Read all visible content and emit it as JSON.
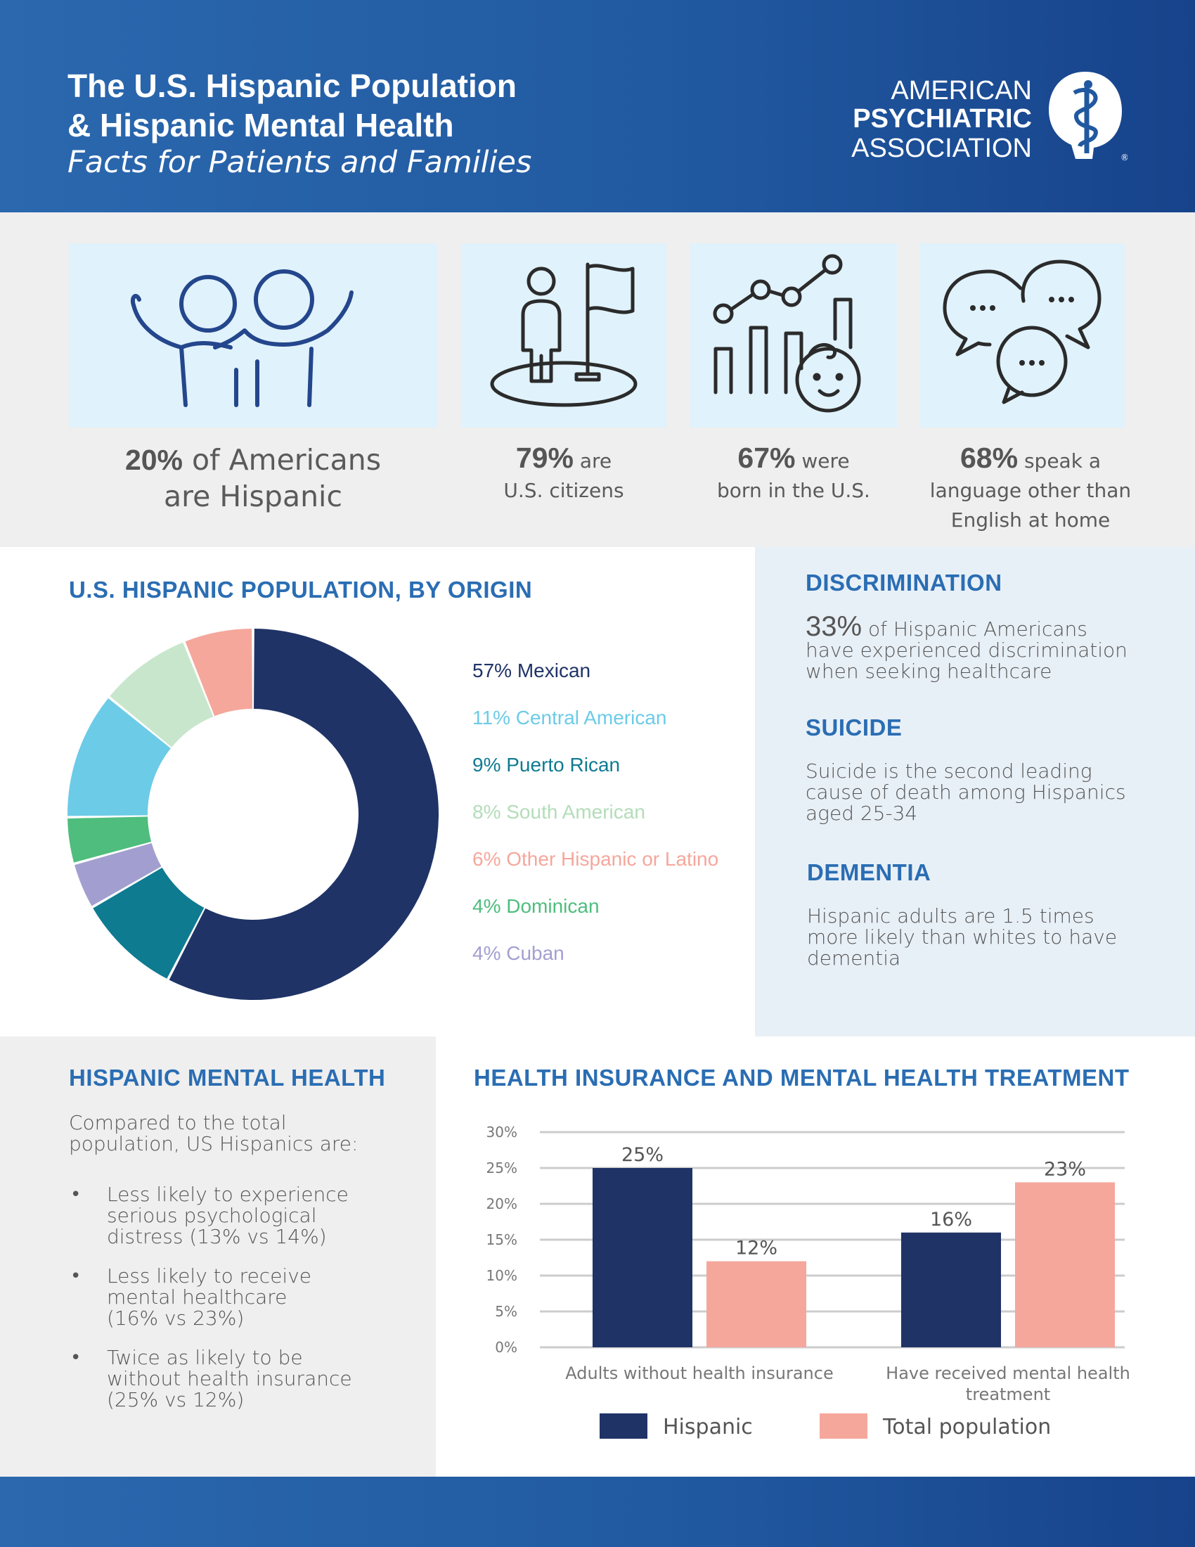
{
  "header": {
    "title_line1": "The U.S. Hispanic Population",
    "title_line2": "& Hispanic Mental Health",
    "subtitle": "Facts for Patients and Families",
    "logo_line1": "AMERICAN",
    "logo_line2": "PSYCHIATRIC",
    "logo_line3": "ASSOCIATION",
    "logo_icon": "caduceus-head-icon"
  },
  "stats": [
    {
      "value": "20%",
      "text1": " of Americans",
      "text2": "are Hispanic",
      "text3": "",
      "icon": "people-icon"
    },
    {
      "value": "79%",
      "text1": " are",
      "text2": "U.S. citizens",
      "text3": "",
      "icon": "person-flag-icon"
    },
    {
      "value": "67%",
      "text1": " were",
      "text2": "born in the U.S.",
      "text3": "",
      "icon": "growth-baby-icon"
    },
    {
      "value": "68%",
      "text1": " speak a",
      "text2": "language other than",
      "text3": "English at home",
      "icon": "speech-bubbles-icon"
    }
  ],
  "origin": {
    "title": "U.S. HISPANIC POPULATION, BY ORIGIN"
  },
  "facts": {
    "discrimination_title": "DISCRIMINATION",
    "discrimination_value": "33%",
    "discrimination_text1": " of Hispanic Americans",
    "discrimination_text2": "have experienced discrimination",
    "discrimination_text3": "when seeking healthcare",
    "suicide_title": "SUICIDE",
    "suicide_text1": "Suicide is the second leading",
    "suicide_text2": "cause of death among Hispanics",
    "suicide_text3": "aged 25-34",
    "dementia_title": "DEMENTIA",
    "dementia_text1": "Hispanic adults are 1.5 times",
    "dementia_text2": "more likely than whites to have",
    "dementia_text3": "dementia"
  },
  "mental_health": {
    "title": "HISPANIC MENTAL HEALTH",
    "intro1": "Compared to the total",
    "intro2": "population, US Hispanics are:",
    "bullet_symbol": "•",
    "bullets": [
      {
        "l1": "Less likely to experience",
        "l2": "serious psychological",
        "l3": "distress (13% vs 14%)"
      },
      {
        "l1": "Less likely to receive",
        "l2": "mental healthcare",
        "l3": "(16% vs 23%)"
      },
      {
        "l1": "Twice as likely to be",
        "l2": "without health insurance",
        "l3": "(25% vs 12%)"
      }
    ]
  },
  "chart_data": [
    {
      "type": "pie",
      "title": "U.S. HISPANIC POPULATION, BY ORIGIN",
      "slices": [
        {
          "label": "57% Mexican",
          "value": 57,
          "color": "#1f3366"
        },
        {
          "label": "11% Central American",
          "value": 11,
          "color": "#6ccbe7"
        },
        {
          "label": "9% Puerto Rican",
          "value": 9,
          "color": "#0e7b91"
        },
        {
          "label": "8% South American",
          "value": 8,
          "color": "#c8e6cc"
        },
        {
          "label": "6% Other Hispanic or Latino",
          "value": 6,
          "color": "#f5a79c"
        },
        {
          "label": "4% Dominican",
          "value": 4,
          "color": "#4ebd7d"
        },
        {
          "label": "4% Cuban",
          "value": 4,
          "color": "#a29fd0"
        }
      ],
      "draw_order": [
        "57% Mexican",
        "9% Puerto Rican",
        "4% Cuban",
        "4% Dominican",
        "11% Central American",
        "8% South American",
        "6% Other Hispanic or Latino"
      ],
      "legend_placement": "right"
    },
    {
      "type": "bar",
      "title": "HEALTH INSURANCE AND MENTAL HEALTH TREATMENT",
      "categories": [
        "Adults without health insurance",
        "Have received mental health treatment"
      ],
      "category_label_lines": [
        [
          "Adults without health insurance"
        ],
        [
          "Have received mental health",
          "treatment"
        ]
      ],
      "series": [
        {
          "name": "Hispanic",
          "values": [
            25,
            16
          ],
          "labels": [
            "25%",
            "16%"
          ],
          "color": "#1f3366"
        },
        {
          "name": "Total population",
          "values": [
            12,
            23
          ],
          "labels": [
            "12%",
            "23%"
          ],
          "color": "#f5a79c"
        }
      ],
      "ylim": [
        0,
        30
      ],
      "yticks": [
        "0%",
        "5%",
        "10%",
        "15%",
        "20%",
        "25%",
        "30%"
      ],
      "grid": true,
      "legend_placement": "bottom"
    }
  ]
}
